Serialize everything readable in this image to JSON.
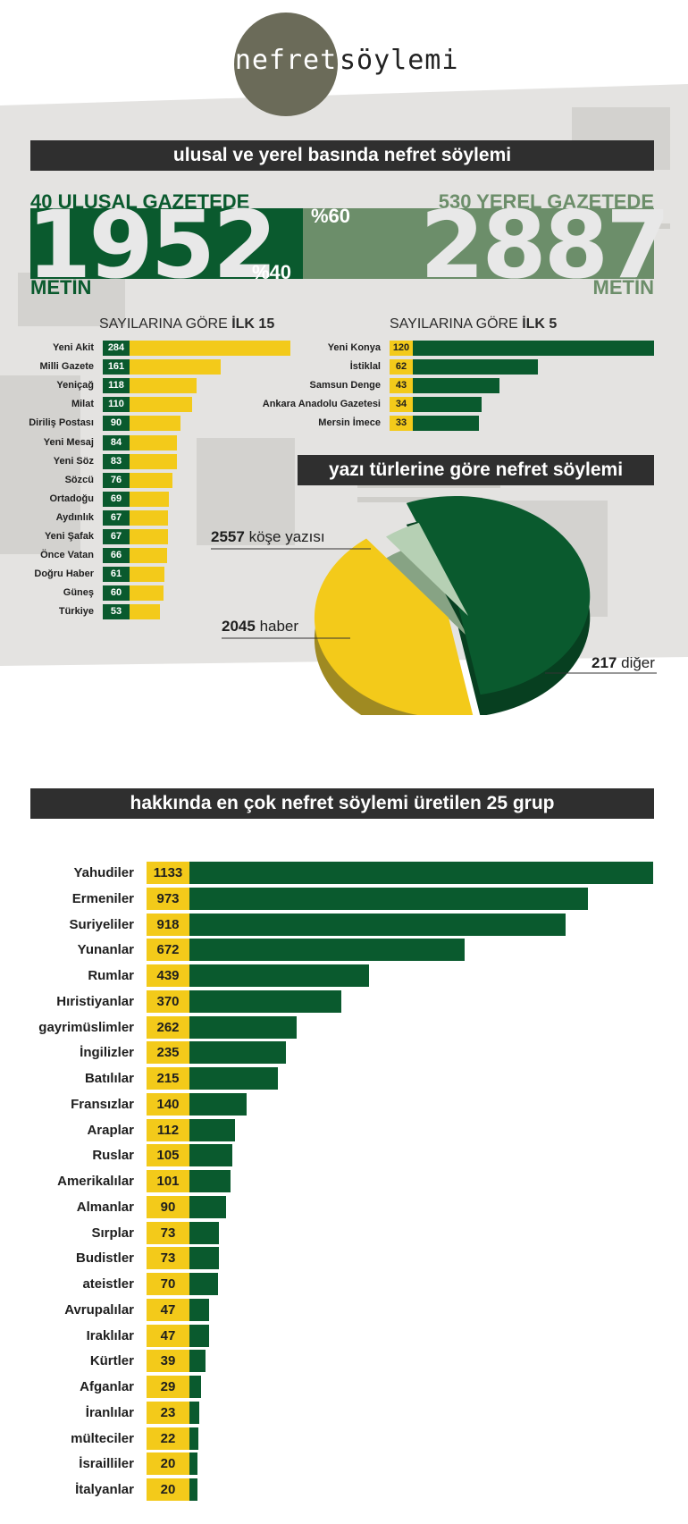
{
  "logo": {
    "left_word": "nefret",
    "right_word": "söylemi"
  },
  "section1": {
    "banner": "ulusal ve yerel basında nefret söylemi",
    "national": {
      "heading": "40 ULUSAL GAZETEDE",
      "value": "1952",
      "unit": "METİN",
      "percent": "%40"
    },
    "local": {
      "heading": "530 YEREL GAZETEDE",
      "value": "2887",
      "unit": "METİN",
      "percent": "%60"
    }
  },
  "colors": {
    "dark_green": "#0a5a2e",
    "light_green": "#6c8e6a",
    "yellow": "#f3ca1a",
    "pale_green": "#b6d0b4",
    "banner": "#2f2f2f"
  },
  "chart_data": [
    {
      "type": "bar",
      "title_prefix": "SAYILARINA GÖRE ",
      "title_bold": "İLK 15",
      "categories": [
        "Yeni Akit",
        "Milli Gazete",
        "Yeniçağ",
        "Milat",
        "Diriliş Postası",
        "Yeni Mesaj",
        "Yeni Söz",
        "Sözcü",
        "Ortadoğu",
        "Aydınlık",
        "Yeni Şafak",
        "Önce Vatan",
        "Doğru Haber",
        "Güneş",
        "Türkiye"
      ],
      "values": [
        284,
        161,
        118,
        110,
        90,
        84,
        83,
        76,
        69,
        67,
        67,
        66,
        61,
        60,
        53
      ]
    },
    {
      "type": "bar",
      "title_prefix": "SAYILARINA GÖRE ",
      "title_bold": "İLK 5",
      "categories": [
        "Yeni Konya",
        "İstiklal",
        "Samsun Denge",
        "Ankara Anadolu Gazetesi",
        "Mersin İmece"
      ],
      "values": [
        120,
        62,
        43,
        34,
        33
      ]
    },
    {
      "type": "pie",
      "title": "yazı türlerine göre nefret söylemi",
      "slices": [
        {
          "value": 2557,
          "value_label": "2557",
          "label": "köşe yazısı",
          "color": "#0a5a2e"
        },
        {
          "value": 2045,
          "value_label": "2045",
          "label": "haber",
          "color": "#f3ca1a"
        },
        {
          "value": 217,
          "value_label": "217",
          "label": "diğer",
          "color": "#b6d0b4"
        }
      ]
    },
    {
      "type": "bar",
      "title": "hakkında en çok nefret söylemi üretilen 25 grup",
      "categories": [
        "Yahudiler",
        "Ermeniler",
        "Suriyeliler",
        "Yunanlar",
        "Rumlar",
        "Hıristiyanlar",
        "gayrimüslimler",
        "İngilizler",
        "Batılılar",
        "Fransızlar",
        "Araplar",
        "Ruslar",
        "Amerikalılar",
        "Almanlar",
        "Sırplar",
        "Budistler",
        "ateistler",
        "Avrupalılar",
        "Iraklılar",
        "Kürtler",
        "Afganlar",
        "İranlılar",
        "mülteciler",
        "İsrailliler",
        "İtalyanlar"
      ],
      "values": [
        1133,
        973,
        918,
        672,
        439,
        370,
        262,
        235,
        215,
        140,
        112,
        105,
        101,
        90,
        73,
        73,
        70,
        47,
        47,
        39,
        29,
        23,
        22,
        20,
        20
      ]
    }
  ]
}
